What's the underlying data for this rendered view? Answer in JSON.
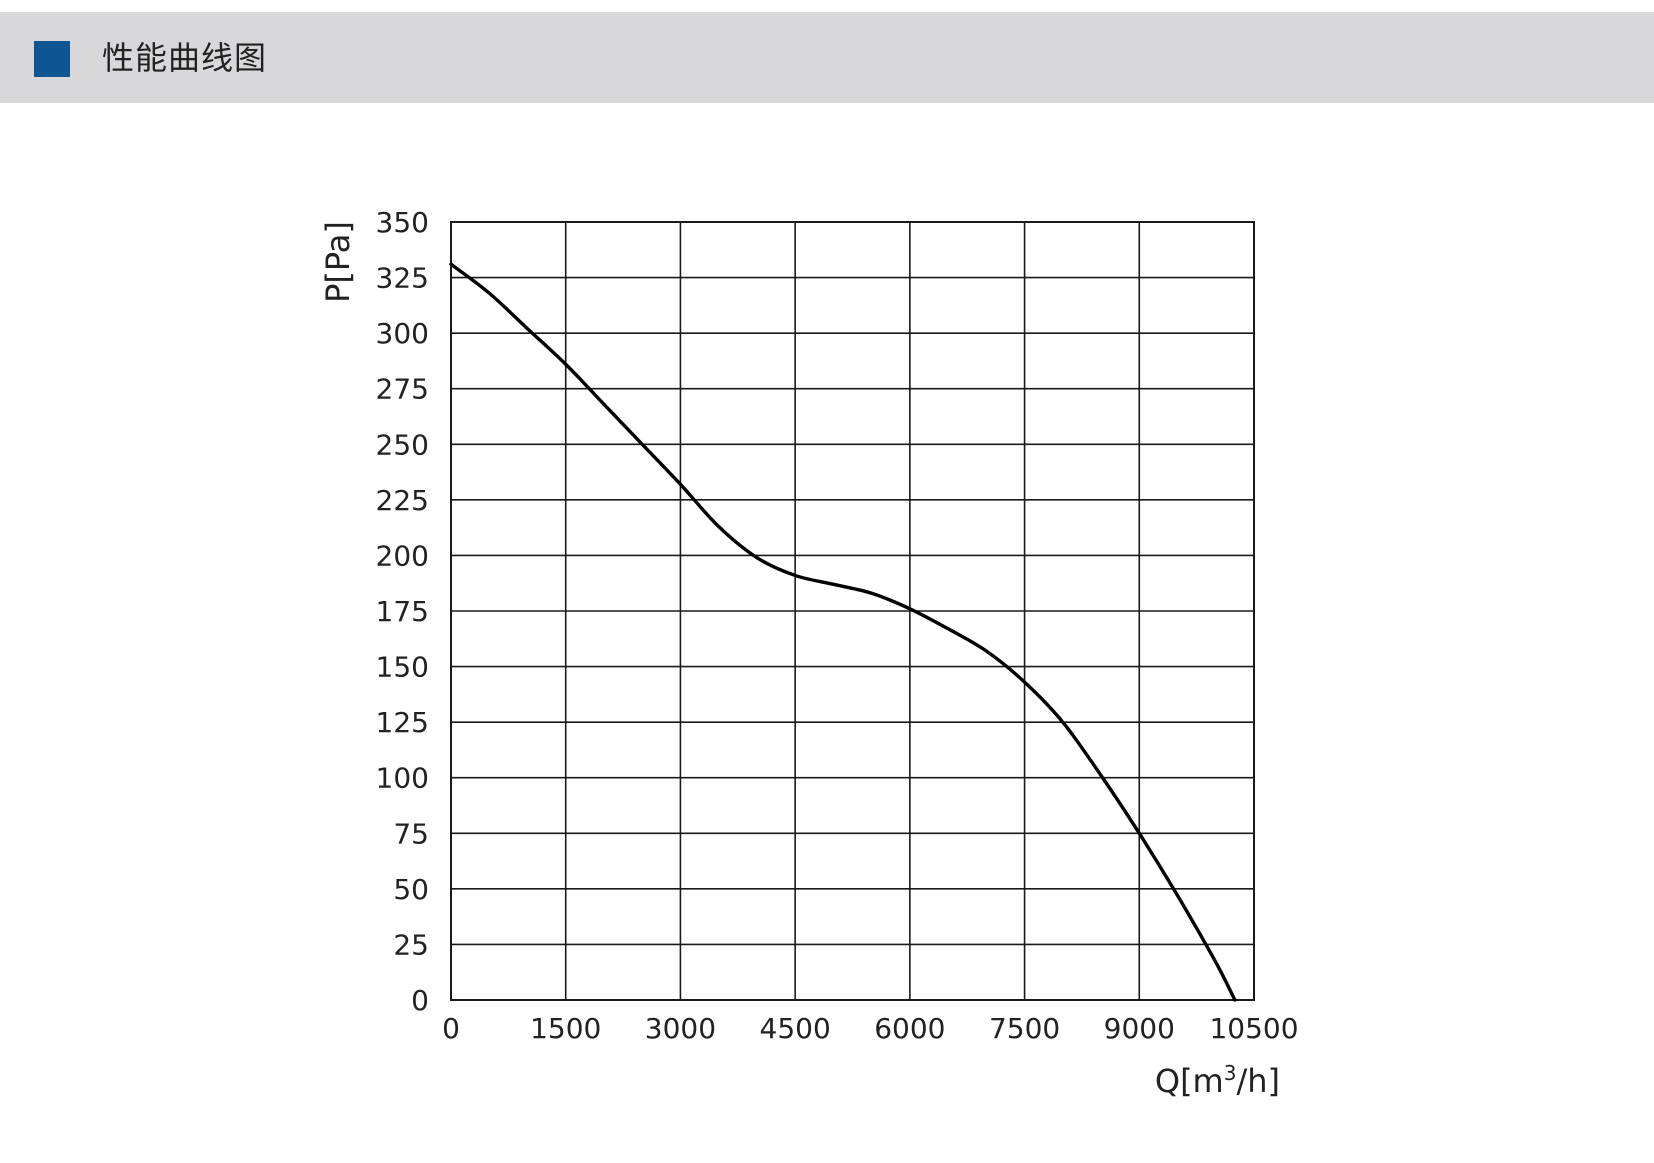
{
  "header": {
    "title": "性能曲线图",
    "accent_color": "#0d5692",
    "bar_color": "#d8d8da"
  },
  "chart_data": {
    "type": "line",
    "title": "",
    "xlabel_main": "Q[m",
    "xlabel_sup": "3",
    "xlabel_tail": "/h]",
    "ylabel": "P[Pa]",
    "xlim": [
      0,
      10500
    ],
    "ylim": [
      0,
      350
    ],
    "x_ticks": [
      "0",
      "1500",
      "3000",
      "4500",
      "6000",
      "7500",
      "9000",
      "10500"
    ],
    "y_ticks": [
      "0",
      "25",
      "50",
      "75",
      "100",
      "125",
      "150",
      "175",
      "200",
      "225",
      "250",
      "275",
      "300",
      "325",
      "350"
    ],
    "grid": true,
    "line_color": "#000000",
    "series": [
      {
        "x": [
          0,
          500,
          1000,
          1500,
          2000,
          2500,
          3000,
          3500,
          4000,
          4500,
          5000,
          5500,
          6000,
          6500,
          7000,
          7500,
          8000,
          8500,
          9000,
          9500,
          10000,
          10250
        ],
        "values": [
          331,
          318,
          302,
          286,
          268,
          250,
          232,
          213,
          199,
          191,
          187,
          183,
          176,
          167,
          157,
          143,
          125,
          101,
          75,
          47,
          17,
          0
        ]
      }
    ]
  }
}
